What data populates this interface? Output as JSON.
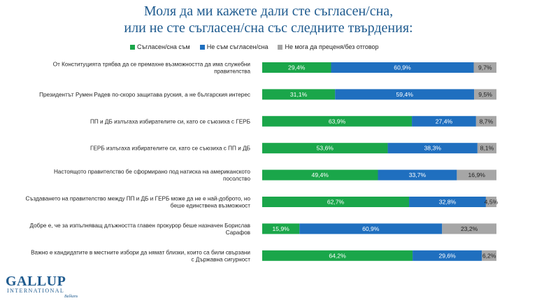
{
  "title_line1": "Моля да ми кажете дали сте съгласен/сна,",
  "title_line2": "или не сте съгласен/сна със следните твърдения:",
  "logo": {
    "main": "GALLUP",
    "sub": "INTERNATIONAL",
    "sub2": "Balkans"
  },
  "chart_data": {
    "type": "bar",
    "orientation": "horizontal",
    "stacked": true,
    "grid": false,
    "legend_position": "top",
    "categories": [
      [
        "От Конституцията трябва да се премахне възможността да има служебни",
        "правителства"
      ],
      [
        "Президентът Румен Радев по-скоро защитава руския, а не българския интерес"
      ],
      [
        "ПП и ДБ излъгаха избирателите си, като се съюзиха с ГЕРБ"
      ],
      [
        "ГЕРБ излъгаха избирателите си, като се съюзиха с ПП и ДБ"
      ],
      [
        "Настоящото правителство бе сформирано под натиска на американското",
        "посолство"
      ],
      [
        "Създаването на правителство между ПП и ДБ и ГЕРБ може да не е най-доброто, но",
        "беше единствена възможност"
      ],
      [
        "Добре е, че за изпълняващ длъжността главен прокурор беше назначен Борислав",
        "Сарафов"
      ],
      [
        "Важно е кандидатите в местните избори да нямат близки, които са били свързани",
        "с Държавна сигурност"
      ]
    ],
    "series": [
      {
        "name": "Съгласен/сна съм",
        "color": "#1aa64a",
        "values": [
          29.4,
          31.1,
          63.9,
          53.6,
          49.4,
          62.7,
          15.9,
          64.2
        ],
        "labels": [
          "29,4%",
          "31,1%",
          "63,9%",
          "53,6%",
          "49,4%",
          "62,7%",
          "15,9%",
          "64,2%"
        ]
      },
      {
        "name": "Не съм съгласен/сна",
        "color": "#1f6fbf",
        "values": [
          60.9,
          59.4,
          27.4,
          38.3,
          33.7,
          32.8,
          60.9,
          29.6
        ],
        "labels": [
          "60,9%",
          "59,4%",
          "27,4%",
          "38,3%",
          "33,7%",
          "32,8%",
          "60,9%",
          "29,6%"
        ]
      },
      {
        "name": "Не мога да преценя/без отговор",
        "color": "#a6a6a6",
        "values": [
          9.7,
          9.5,
          8.7,
          8.1,
          16.9,
          4.5,
          23.2,
          6.2
        ],
        "labels": [
          "9,7%",
          "9,5%",
          "8,7%",
          "8,1%",
          "16,9%",
          "4,5%",
          "23,2%",
          "6,2%"
        ]
      }
    ],
    "xlim": [
      0,
      100
    ]
  }
}
